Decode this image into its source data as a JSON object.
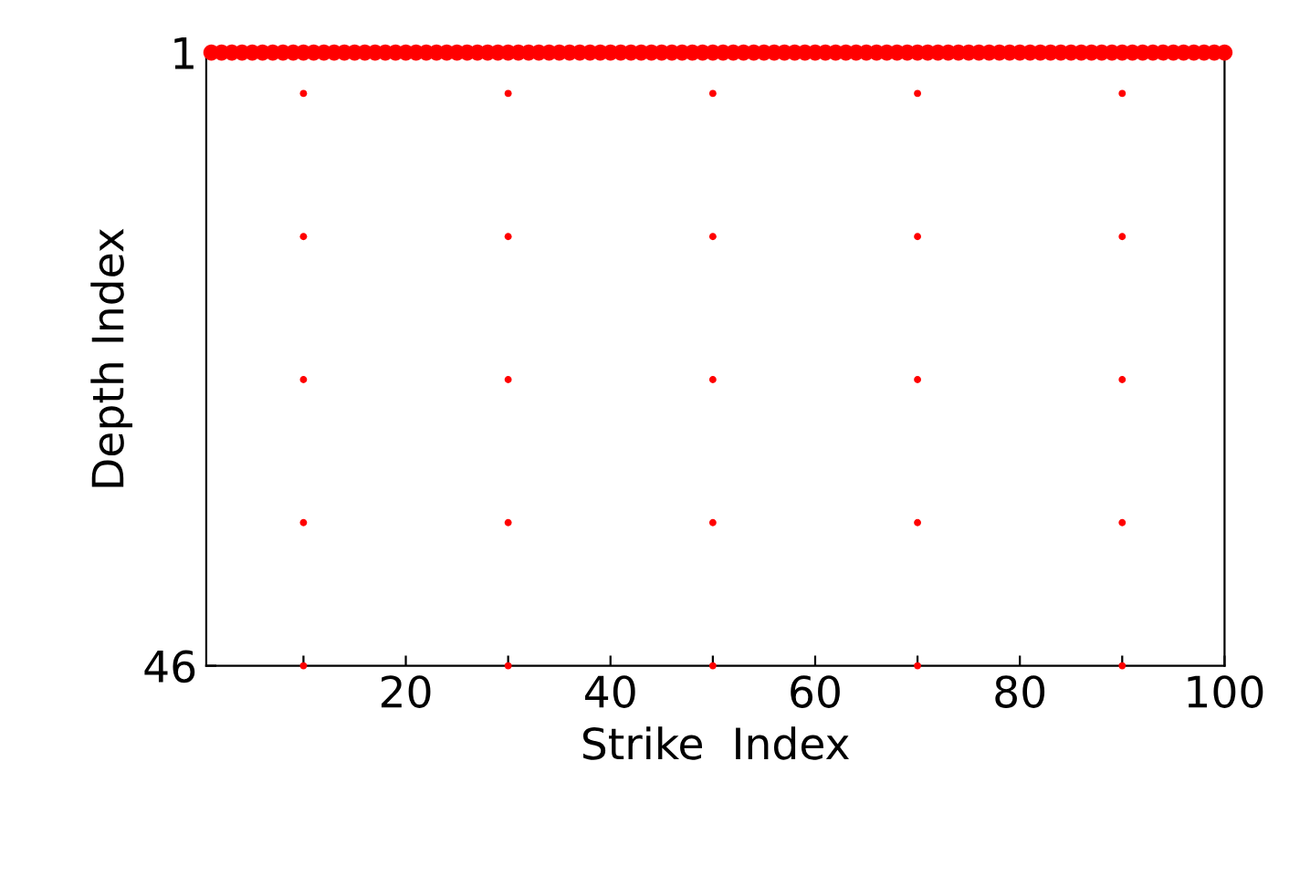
{
  "chart_data": {
    "type": "scatter",
    "xlabel": "Strike  Index",
    "ylabel": "Depth Index",
    "xlim": [
      0.5,
      100
    ],
    "ylim": [
      46,
      1
    ],
    "xticks": [
      {
        "value": 10,
        "label": null
      },
      20,
      {
        "value": 30,
        "label": null
      },
      40,
      {
        "value": 50,
        "label": null
      },
      60,
      {
        "value": 70,
        "label": null
      },
      80,
      {
        "value": 90,
        "label": null
      },
      100
    ],
    "yticks": [
      1,
      46
    ],
    "grid": false,
    "legend": false,
    "marker": "circle",
    "series": [
      {
        "color": "#ff0000",
        "x": [
          1,
          2,
          3,
          4,
          5,
          6,
          7,
          8,
          9,
          10,
          11,
          12,
          13,
          14,
          15,
          16,
          17,
          18,
          19,
          20,
          21,
          22,
          23,
          24,
          25,
          26,
          27,
          28,
          29,
          30,
          31,
          32,
          33,
          34,
          35,
          36,
          37,
          38,
          39,
          40,
          41,
          42,
          43,
          44,
          45,
          46,
          47,
          48,
          49,
          50,
          51,
          52,
          53,
          54,
          55,
          56,
          57,
          58,
          59,
          60,
          61,
          62,
          63,
          64,
          65,
          66,
          67,
          68,
          69,
          70,
          71,
          72,
          73,
          74,
          75,
          76,
          77,
          78,
          79,
          80,
          81,
          82,
          83,
          84,
          85,
          86,
          87,
          88,
          89,
          90,
          91,
          92,
          93,
          94,
          95,
          96,
          97,
          98,
          99,
          100
        ],
        "values": [
          1,
          1,
          1,
          1,
          1,
          1,
          1,
          1,
          1,
          1,
          1,
          1,
          1,
          1,
          1,
          1,
          1,
          1,
          1,
          1,
          1,
          1,
          1,
          1,
          1,
          1,
          1,
          1,
          1,
          1,
          1,
          1,
          1,
          1,
          1,
          1,
          1,
          1,
          1,
          1,
          1,
          1,
          1,
          1,
          1,
          1,
          1,
          1,
          1,
          1,
          1,
          1,
          1,
          1,
          1,
          1,
          1,
          1,
          1,
          1,
          1,
          1,
          1,
          1,
          1,
          1,
          1,
          1,
          1,
          1,
          1,
          1,
          1,
          1,
          1,
          1,
          1,
          1,
          1,
          1,
          1,
          1,
          1,
          1,
          1,
          1,
          1,
          1,
          1,
          1,
          1,
          1,
          1,
          1,
          1,
          1,
          1,
          1,
          1,
          1
        ]
      },
      {
        "color": "#ff0000",
        "x": [
          10,
          30,
          50,
          70,
          90,
          10,
          30,
          50,
          70,
          90,
          10,
          30,
          50,
          70,
          90,
          10,
          30,
          50,
          70,
          90,
          10,
          30,
          50,
          70,
          90
        ],
        "values": [
          4,
          4,
          4,
          4,
          4,
          14.5,
          14.5,
          14.5,
          14.5,
          14.5,
          25,
          25,
          25,
          25,
          25,
          35.5,
          35.5,
          35.5,
          35.5,
          35.5,
          46,
          46,
          46,
          46,
          46
        ]
      }
    ]
  }
}
